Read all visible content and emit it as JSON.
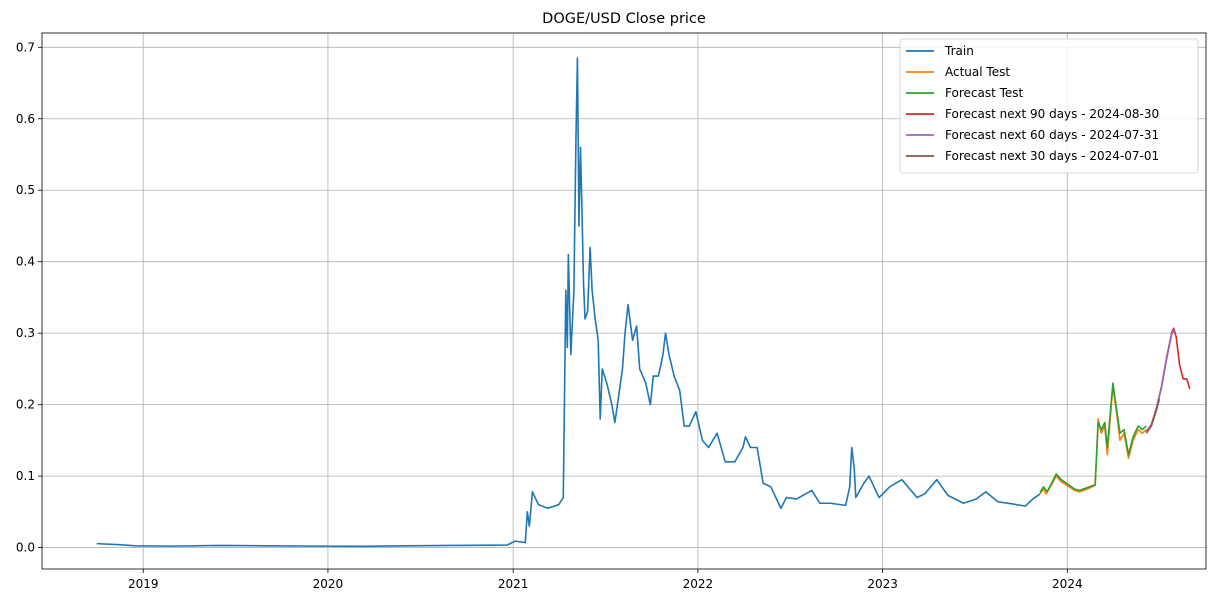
{
  "chart_data": {
    "type": "line",
    "title": "DOGE/USD Close price",
    "xlabel": "",
    "ylabel": "",
    "x_axis": {
      "type": "date",
      "range": [
        "2018-06-15",
        "2024-10-01"
      ],
      "ticks": [
        {
          "date": "2019-01-01",
          "label": "2019"
        },
        {
          "date": "2020-01-01",
          "label": "2020"
        },
        {
          "date": "2021-01-01",
          "label": "2021"
        },
        {
          "date": "2022-01-01",
          "label": "2022"
        },
        {
          "date": "2023-01-01",
          "label": "2023"
        },
        {
          "date": "2024-01-01",
          "label": "2024"
        }
      ]
    },
    "y_axis": {
      "range": [
        -0.03,
        0.72
      ],
      "ticks": [
        {
          "value": 0.0,
          "label": "0.0"
        },
        {
          "value": 0.1,
          "label": "0.1"
        },
        {
          "value": 0.2,
          "label": "0.2"
        },
        {
          "value": 0.3,
          "label": "0.3"
        },
        {
          "value": 0.4,
          "label": "0.4"
        },
        {
          "value": 0.5,
          "label": "0.5"
        },
        {
          "value": 0.6,
          "label": "0.6"
        },
        {
          "value": 0.7,
          "label": "0.7"
        }
      ]
    },
    "grid": true,
    "legend_position": "top-right",
    "series": [
      {
        "name": "Train",
        "color": "#1f77b4",
        "points": [
          [
            "2018-10-01",
            0.0055
          ],
          [
            "2018-11-15",
            0.004
          ],
          [
            "2018-12-15",
            0.0025
          ],
          [
            "2019-03-01",
            0.002
          ],
          [
            "2019-06-01",
            0.003
          ],
          [
            "2019-09-01",
            0.0025
          ],
          [
            "2019-12-15",
            0.002
          ],
          [
            "2020-03-15",
            0.0018
          ],
          [
            "2020-06-01",
            0.0025
          ],
          [
            "2020-09-01",
            0.003
          ],
          [
            "2020-12-20",
            0.0035
          ],
          [
            "2021-01-05",
            0.009
          ],
          [
            "2021-01-25",
            0.007
          ],
          [
            "2021-01-29",
            0.05
          ],
          [
            "2021-02-02",
            0.03
          ],
          [
            "2021-02-08",
            0.078
          ],
          [
            "2021-02-20",
            0.06
          ],
          [
            "2021-03-10",
            0.055
          ],
          [
            "2021-04-01",
            0.06
          ],
          [
            "2021-04-10",
            0.07
          ],
          [
            "2021-04-15",
            0.36
          ],
          [
            "2021-04-18",
            0.28
          ],
          [
            "2021-04-20",
            0.41
          ],
          [
            "2021-04-25",
            0.27
          ],
          [
            "2021-05-01",
            0.36
          ],
          [
            "2021-05-05",
            0.57
          ],
          [
            "2021-05-08",
            0.685
          ],
          [
            "2021-05-11",
            0.45
          ],
          [
            "2021-05-14",
            0.56
          ],
          [
            "2021-05-17",
            0.47
          ],
          [
            "2021-05-20",
            0.37
          ],
          [
            "2021-05-23",
            0.32
          ],
          [
            "2021-05-28",
            0.33
          ],
          [
            "2021-06-02",
            0.42
          ],
          [
            "2021-06-06",
            0.36
          ],
          [
            "2021-06-12",
            0.32
          ],
          [
            "2021-06-18",
            0.29
          ],
          [
            "2021-06-22",
            0.18
          ],
          [
            "2021-06-26",
            0.25
          ],
          [
            "2021-07-05",
            0.23
          ],
          [
            "2021-07-15",
            0.2
          ],
          [
            "2021-07-21",
            0.175
          ],
          [
            "2021-07-28",
            0.21
          ],
          [
            "2021-08-05",
            0.25
          ],
          [
            "2021-08-10",
            0.3
          ],
          [
            "2021-08-16",
            0.34
          ],
          [
            "2021-08-25",
            0.29
          ],
          [
            "2021-09-02",
            0.31
          ],
          [
            "2021-09-08",
            0.25
          ],
          [
            "2021-09-20",
            0.23
          ],
          [
            "2021-09-29",
            0.2
          ],
          [
            "2021-10-05",
            0.24
          ],
          [
            "2021-10-15",
            0.24
          ],
          [
            "2021-10-24",
            0.27
          ],
          [
            "2021-10-29",
            0.3
          ],
          [
            "2021-11-05",
            0.27
          ],
          [
            "2021-11-15",
            0.24
          ],
          [
            "2021-11-26",
            0.22
          ],
          [
            "2021-12-05",
            0.17
          ],
          [
            "2021-12-15",
            0.17
          ],
          [
            "2021-12-28",
            0.19
          ],
          [
            "2022-01-10",
            0.15
          ],
          [
            "2022-01-22",
            0.14
          ],
          [
            "2022-02-08",
            0.16
          ],
          [
            "2022-02-24",
            0.12
          ],
          [
            "2022-03-15",
            0.12
          ],
          [
            "2022-03-31",
            0.14
          ],
          [
            "2022-04-05",
            0.155
          ],
          [
            "2022-04-15",
            0.14
          ],
          [
            "2022-04-28",
            0.14
          ],
          [
            "2022-05-10",
            0.09
          ],
          [
            "2022-05-25",
            0.085
          ],
          [
            "2022-06-14",
            0.055
          ],
          [
            "2022-06-25",
            0.07
          ],
          [
            "2022-07-15",
            0.068
          ],
          [
            "2022-08-14",
            0.08
          ],
          [
            "2022-08-30",
            0.062
          ],
          [
            "2022-09-20",
            0.062
          ],
          [
            "2022-10-20",
            0.059
          ],
          [
            "2022-10-28",
            0.085
          ],
          [
            "2022-11-01",
            0.14
          ],
          [
            "2022-11-06",
            0.11
          ],
          [
            "2022-11-09",
            0.07
          ],
          [
            "2022-11-25",
            0.09
          ],
          [
            "2022-12-05",
            0.1
          ],
          [
            "2022-12-25",
            0.07
          ],
          [
            "2023-01-15",
            0.085
          ],
          [
            "2023-02-08",
            0.095
          ],
          [
            "2023-03-10",
            0.07
          ],
          [
            "2023-03-25",
            0.075
          ],
          [
            "2023-04-18",
            0.095
          ],
          [
            "2023-05-10",
            0.073
          ],
          [
            "2023-06-10",
            0.062
          ],
          [
            "2023-07-05",
            0.068
          ],
          [
            "2023-07-24",
            0.078
          ],
          [
            "2023-08-17",
            0.064
          ],
          [
            "2023-09-15",
            0.061
          ],
          [
            "2023-10-10",
            0.058
          ],
          [
            "2023-10-25",
            0.068
          ],
          [
            "2023-11-08",
            0.075
          ]
        ]
      },
      {
        "name": "Actual Test",
        "color": "#ff7f0e",
        "points": [
          [
            "2023-11-08",
            0.075
          ],
          [
            "2023-11-15",
            0.082
          ],
          [
            "2023-11-20",
            0.075
          ],
          [
            "2023-12-01",
            0.088
          ],
          [
            "2023-12-10",
            0.1
          ],
          [
            "2023-12-20",
            0.092
          ],
          [
            "2024-01-05",
            0.085
          ],
          [
            "2024-01-15",
            0.08
          ],
          [
            "2024-01-25",
            0.078
          ],
          [
            "2024-02-10",
            0.082
          ],
          [
            "2024-02-25",
            0.087
          ],
          [
            "2024-03-02",
            0.18
          ],
          [
            "2024-03-08",
            0.16
          ],
          [
            "2024-03-15",
            0.17
          ],
          [
            "2024-03-20",
            0.13
          ],
          [
            "2024-03-28",
            0.2
          ],
          [
            "2024-03-31",
            0.225
          ],
          [
            "2024-04-07",
            0.19
          ],
          [
            "2024-04-14",
            0.15
          ],
          [
            "2024-04-22",
            0.16
          ],
          [
            "2024-05-01",
            0.125
          ],
          [
            "2024-05-10",
            0.15
          ],
          [
            "2024-05-20",
            0.165
          ],
          [
            "2024-05-28",
            0.16
          ],
          [
            "2024-06-05",
            0.165
          ]
        ]
      },
      {
        "name": "Forecast Test",
        "color": "#2ca02c",
        "points": [
          [
            "2023-11-08",
            0.077
          ],
          [
            "2023-11-15",
            0.085
          ],
          [
            "2023-11-22",
            0.078
          ],
          [
            "2023-12-01",
            0.09
          ],
          [
            "2023-12-10",
            0.103
          ],
          [
            "2023-12-20",
            0.095
          ],
          [
            "2024-01-05",
            0.087
          ],
          [
            "2024-01-15",
            0.082
          ],
          [
            "2024-01-25",
            0.08
          ],
          [
            "2024-02-10",
            0.084
          ],
          [
            "2024-02-25",
            0.088
          ],
          [
            "2024-03-02",
            0.175
          ],
          [
            "2024-03-08",
            0.165
          ],
          [
            "2024-03-15",
            0.175
          ],
          [
            "2024-03-20",
            0.14
          ],
          [
            "2024-03-28",
            0.205
          ],
          [
            "2024-03-31",
            0.23
          ],
          [
            "2024-04-07",
            0.195
          ],
          [
            "2024-04-14",
            0.16
          ],
          [
            "2024-04-22",
            0.165
          ],
          [
            "2024-05-01",
            0.13
          ],
          [
            "2024-05-10",
            0.155
          ],
          [
            "2024-05-20",
            0.17
          ],
          [
            "2024-05-28",
            0.165
          ],
          [
            "2024-06-05",
            0.17
          ]
        ]
      },
      {
        "name": "Forecast next 90 days - 2024-08-30",
        "color": "#d62728",
        "points": [
          [
            "2024-06-05",
            0.162
          ],
          [
            "2024-06-15",
            0.172
          ],
          [
            "2024-06-25",
            0.195
          ],
          [
            "2024-07-05",
            0.225
          ],
          [
            "2024-07-15",
            0.265
          ],
          [
            "2024-07-25",
            0.3
          ],
          [
            "2024-07-29",
            0.307
          ],
          [
            "2024-08-03",
            0.295
          ],
          [
            "2024-08-10",
            0.255
          ],
          [
            "2024-08-17",
            0.236
          ],
          [
            "2024-08-24",
            0.236
          ],
          [
            "2024-08-30",
            0.222
          ]
        ]
      },
      {
        "name": "Forecast next 60 days - 2024-07-31",
        "color": "#9467bd",
        "points": [
          [
            "2024-06-05",
            0.161
          ],
          [
            "2024-06-15",
            0.171
          ],
          [
            "2024-06-25",
            0.194
          ],
          [
            "2024-07-05",
            0.224
          ],
          [
            "2024-07-15",
            0.263
          ],
          [
            "2024-07-25",
            0.298
          ],
          [
            "2024-07-31",
            0.306
          ]
        ]
      },
      {
        "name": "Forecast next 30 days - 2024-07-01",
        "color": "#8c564b",
        "points": [
          [
            "2024-06-05",
            0.16
          ],
          [
            "2024-06-15",
            0.17
          ],
          [
            "2024-06-25",
            0.192
          ],
          [
            "2024-07-01",
            0.208
          ]
        ]
      }
    ]
  }
}
